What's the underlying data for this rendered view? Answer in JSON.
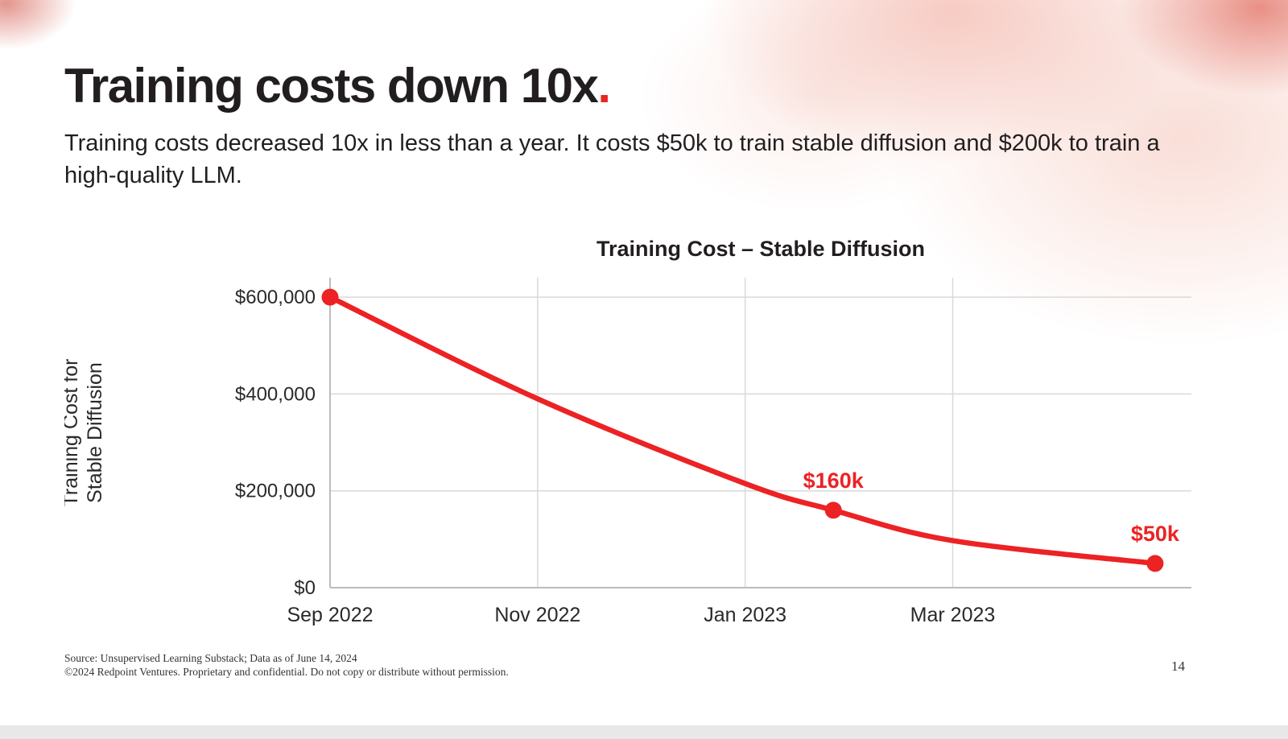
{
  "slide": {
    "title": "Training costs down 10x",
    "title_period": ".",
    "subtitle": "Training costs decreased 10x in less than a year. It costs $50k to train stable diffusion and $200k to train a high-quality LLM.",
    "footer": {
      "source_line": "Source: Unsupervised Learning Substack; Data as of June 14, 2024",
      "copyright_line": "©2024 Redpoint Ventures. Proprietary and confidential. Do not copy or distribute without permission.",
      "page_number": "14"
    },
    "accent_color": "#e8251f"
  },
  "chart_data": {
    "type": "line",
    "title": "Training Cost – Stable Diffusion",
    "ylabel_lines": [
      "Training Cost for",
      "Stable Diffusion"
    ],
    "xlabel": "",
    "x_ticks": [
      {
        "label": "Sep 2022",
        "month": 0
      },
      {
        "label": "Nov 2022",
        "month": 2
      },
      {
        "label": "Jan 2023",
        "month": 4
      },
      {
        "label": "Mar 2023",
        "month": 6
      }
    ],
    "y_ticks": [
      {
        "label": "$0",
        "value": 0
      },
      {
        "label": "$200,000",
        "value": 200000
      },
      {
        "label": "$400,000",
        "value": 400000
      },
      {
        "label": "$600,000",
        "value": 600000
      }
    ],
    "xlim": [
      0,
      8.3
    ],
    "ylim": [
      0,
      640000
    ],
    "grid": true,
    "legend": "none",
    "line_color": "#ec2224",
    "grid_color": "#d9d9d9",
    "axis_color": "#bcbcbc",
    "text_color": "#2a2a2a",
    "series": [
      {
        "name": "Training cost for Stable Diffusion (USD)",
        "points": [
          {
            "month": 0,
            "value": 600000,
            "marker": true,
            "label": ""
          },
          {
            "month": 2,
            "value": 390000,
            "marker": false,
            "label": ""
          },
          {
            "month": 4,
            "value": 215000,
            "marker": false,
            "label": ""
          },
          {
            "month": 4.85,
            "value": 160000,
            "marker": true,
            "label": "$160k"
          },
          {
            "month": 6,
            "value": 97000,
            "marker": false,
            "label": ""
          },
          {
            "month": 7.95,
            "value": 50000,
            "marker": true,
            "label": "$50k"
          }
        ]
      }
    ]
  }
}
